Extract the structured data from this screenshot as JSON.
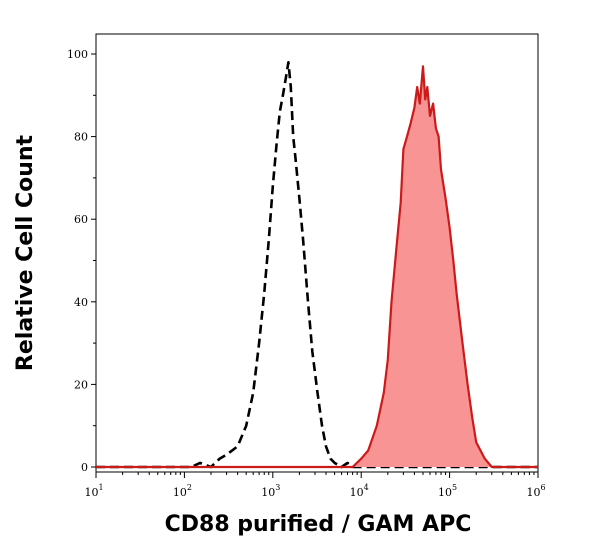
{
  "chart_data": {
    "type": "area",
    "xlabel": "CD88 purified / GAM APC",
    "ylabel": "Relative Cell Count",
    "x_scale": "log",
    "xlim": [
      10,
      1000000
    ],
    "ylim": [
      0,
      100
    ],
    "grid": false,
    "x_ticks": [
      {
        "value": 10,
        "base": "10",
        "exp": "1"
      },
      {
        "value": 100,
        "base": "10",
        "exp": "2"
      },
      {
        "value": 1000,
        "base": "10",
        "exp": "3"
      },
      {
        "value": 10000,
        "base": "10",
        "exp": "4"
      },
      {
        "value": 100000,
        "base": "10",
        "exp": "5"
      },
      {
        "value": 1000000,
        "base": "10",
        "exp": "6"
      }
    ],
    "y_ticks": [
      0,
      20,
      40,
      60,
      80,
      100
    ],
    "series": [
      {
        "style": "dashed",
        "color": "#000000",
        "fill": "none",
        "x": [
          10,
          120,
          150,
          200,
          250,
          300,
          400,
          500,
          600,
          700,
          800,
          900,
          1000,
          1100,
          1200,
          1300,
          1400,
          1500,
          1600,
          1700,
          1800,
          2000,
          2200,
          2500,
          2800,
          3200,
          3600,
          4000,
          4500,
          5000,
          6000,
          7000,
          8000,
          1000000
        ],
        "y": [
          0,
          0,
          1,
          0,
          2,
          3,
          5,
          10,
          18,
          30,
          42,
          55,
          68,
          78,
          86,
          90,
          94,
          98,
          92,
          80,
          75,
          65,
          55,
          40,
          28,
          18,
          10,
          5,
          2,
          1,
          0,
          1,
          0,
          0
        ]
      },
      {
        "style": "solid",
        "color": "#cc1a1a",
        "fill": "#f99494",
        "x": [
          10,
          8000,
          10000,
          12000,
          15000,
          18000,
          20000,
          22000,
          25000,
          28000,
          30000,
          33000,
          36000,
          40000,
          43000,
          46000,
          50000,
          53000,
          56000,
          60000,
          65000,
          70000,
          75000,
          80000,
          90000,
          100000,
          110000,
          120000,
          140000,
          160000,
          180000,
          200000,
          250000,
          300000,
          1000000
        ],
        "y": [
          0,
          0,
          2,
          4,
          10,
          18,
          26,
          40,
          53,
          64,
          77,
          80,
          83,
          87,
          92,
          88,
          97,
          89,
          92,
          85,
          88,
          82,
          80,
          72,
          65,
          58,
          50,
          42,
          30,
          20,
          12,
          6,
          2,
          0,
          0
        ]
      }
    ]
  }
}
